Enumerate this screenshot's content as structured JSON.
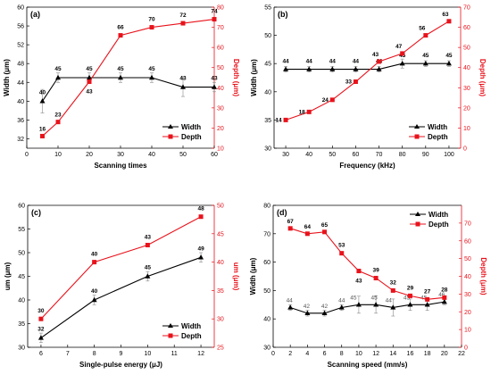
{
  "colors": {
    "width": "#000000",
    "depth": "#e8121b",
    "errbar": "#888888"
  },
  "chart_data": [
    {
      "panel_label": "(a)",
      "type": "line",
      "xlabel": "Scanning times",
      "ylabel": "Width (μm)",
      "y2label": "Depth (μm)",
      "xlim": [
        0,
        60
      ],
      "xticks": [
        0,
        10,
        20,
        30,
        40,
        50,
        60
      ],
      "ylim": [
        30,
        60
      ],
      "yticks": [
        32,
        36,
        40,
        44,
        48,
        52,
        56,
        60
      ],
      "y2lim": [
        10,
        80
      ],
      "y2ticks": [
        10,
        20,
        30,
        40,
        50,
        60,
        70,
        80
      ],
      "legend_position": "bottom-right",
      "series": [
        {
          "name": "Width",
          "axis": "left",
          "marker": "triangle",
          "x": [
            5,
            10,
            20,
            30,
            40,
            50,
            60
          ],
          "y": [
            40,
            45,
            45,
            45,
            45,
            43,
            43
          ],
          "err": [
            2.5,
            1,
            1,
            1,
            1,
            2,
            1
          ],
          "labels": [
            "40",
            "45",
            "45",
            "45",
            "45",
            "43",
            "43"
          ]
        },
        {
          "name": "Depth",
          "axis": "right",
          "marker": "square",
          "x": [
            5,
            10,
            20,
            30,
            40,
            50,
            60
          ],
          "y": [
            16,
            23,
            43,
            66,
            70,
            72,
            74
          ],
          "labels": [
            "16",
            "23",
            "43",
            "66",
            "70",
            "72",
            "74"
          ]
        }
      ]
    },
    {
      "panel_label": "(b)",
      "type": "line",
      "xlabel": "Frequency (kHz)",
      "ylabel": "Width (μm)",
      "y2label": "Depth (μm)",
      "xlim": [
        25,
        105
      ],
      "xticks": [
        30,
        40,
        50,
        60,
        70,
        80,
        90,
        100
      ],
      "ylim": [
        30,
        55
      ],
      "yticks": [
        30,
        35,
        40,
        45,
        50,
        55
      ],
      "y2lim": [
        0,
        70
      ],
      "y2ticks": [
        0,
        10,
        20,
        30,
        40,
        50,
        60,
        70
      ],
      "legend_position": "bottom-right",
      "series": [
        {
          "name": "Width",
          "axis": "left",
          "marker": "triangle",
          "x": [
            30,
            40,
            50,
            60,
            70,
            80,
            90,
            100
          ],
          "y": [
            44,
            44,
            44,
            44,
            44,
            45,
            45,
            45
          ],
          "err": [
            0.5,
            0.5,
            0.5,
            0.5,
            0.5,
            0.8,
            0.5,
            0.5
          ],
          "labels": [
            "44",
            "44",
            "44",
            "44",
            "44",
            "45",
            "45",
            "45"
          ]
        },
        {
          "name": "Depth",
          "axis": "right",
          "marker": "square",
          "x": [
            30,
            40,
            50,
            60,
            70,
            80,
            90,
            100
          ],
          "y": [
            14,
            18,
            24,
            33,
            43,
            47,
            56,
            63
          ],
          "labels": [
            "14",
            "18",
            "24",
            "33",
            "43",
            "47",
            "56",
            "63"
          ]
        }
      ]
    },
    {
      "panel_label": "(c)",
      "type": "line",
      "xlabel": "Single-pulse energy (μJ)",
      "ylabel": "um (μm)",
      "y2label": "um (μm)",
      "xlim": [
        5.5,
        12.5
      ],
      "xticks": [
        6,
        7,
        8,
        9,
        10,
        11,
        12
      ],
      "ylim": [
        30,
        60
      ],
      "yticks": [
        30,
        35,
        40,
        45,
        50,
        55,
        60
      ],
      "y2lim": [
        25,
        50
      ],
      "y2ticks": [
        25,
        30,
        35,
        40,
        45,
        50
      ],
      "legend_position": "bottom-right",
      "series": [
        {
          "name": "Width",
          "axis": "left",
          "marker": "triangle",
          "x": [
            6,
            8,
            10,
            12
          ],
          "y": [
            32,
            40,
            45,
            49
          ],
          "err": [
            1,
            1,
            1,
            1
          ],
          "labels": [
            "32",
            "40",
            "45",
            "49"
          ]
        },
        {
          "name": "Depth",
          "axis": "right",
          "marker": "square",
          "x": [
            6,
            8,
            10,
            12
          ],
          "y": [
            30,
            40,
            43,
            48
          ],
          "labels": [
            "30",
            "40",
            "43",
            "48"
          ]
        }
      ]
    },
    {
      "panel_label": "(d)",
      "type": "line",
      "xlabel": "Scanning speed (mm/s)",
      "ylabel": "Width (μm)",
      "y2label": "Depth (μm)",
      "xlim": [
        0,
        22
      ],
      "xticks": [
        0,
        2,
        4,
        6,
        8,
        10,
        12,
        14,
        16,
        18,
        20,
        22
      ],
      "ylim": [
        30,
        80
      ],
      "yticks": [
        30,
        40,
        50,
        60,
        70,
        80
      ],
      "y2lim": [
        0,
        80
      ],
      "y2ticks": [
        0,
        10,
        20,
        30,
        40,
        50,
        60,
        70
      ],
      "legend_position": "top-right",
      "series": [
        {
          "name": "Width",
          "axis": "left",
          "marker": "triangle",
          "x": [
            2,
            4,
            6,
            8,
            10,
            12,
            14,
            16,
            18,
            20
          ],
          "y": [
            44,
            42,
            42,
            44,
            45,
            45,
            44,
            45,
            45,
            46
          ],
          "err": [
            1,
            1,
            1,
            1,
            3,
            3,
            3,
            2,
            2,
            1
          ],
          "labels": [
            "44",
            "42",
            "42",
            "44",
            "45",
            "45",
            "44",
            "45",
            "45",
            "46"
          ]
        },
        {
          "name": "Depth",
          "axis": "right",
          "marker": "square",
          "x": [
            2,
            4,
            6,
            8,
            10,
            12,
            14,
            16,
            18,
            20
          ],
          "y": [
            67,
            64,
            65,
            53,
            43,
            39,
            32,
            29,
            27,
            28
          ],
          "labels": [
            "67",
            "64",
            "65",
            "53",
            "43",
            "39",
            "32",
            "29",
            "27",
            "28"
          ]
        }
      ]
    }
  ]
}
